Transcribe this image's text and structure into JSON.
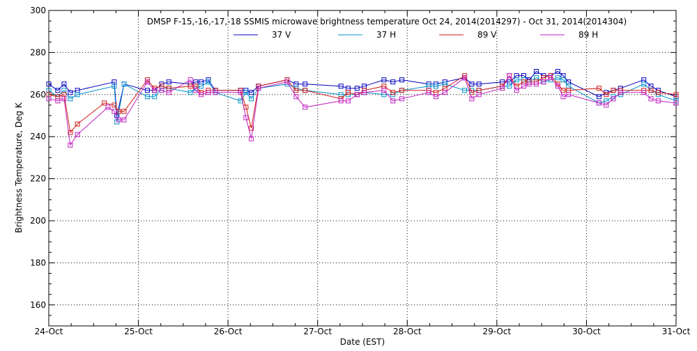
{
  "chart_data": {
    "type": "line",
    "title": "DMSP F-15,-16,-17,-18 SSMIS microwave brightness temperature Oct 24, 2014(2014297) - Oct 31, 2014(2014304)",
    "xlabel": "Date (EST)",
    "ylabel": "Brightness Temperature, Deg K",
    "xlim": [
      0,
      7
    ],
    "ylim": [
      150,
      300
    ],
    "yticks": [
      160,
      180,
      200,
      220,
      240,
      260,
      280,
      300
    ],
    "xtick_labels": [
      "24-Oct",
      "25-Oct",
      "26-Oct",
      "27-Oct",
      "28-Oct",
      "29-Oct",
      "30-Oct",
      "31-Oct"
    ],
    "grid": true,
    "legend_position": "top-center",
    "series": [
      {
        "name": "37 V",
        "color": "#0000c0",
        "x": [
          0.0,
          0.1,
          0.17,
          0.24,
          0.32,
          0.73,
          0.76,
          0.84,
          1.1,
          1.18,
          1.26,
          1.34,
          1.58,
          1.64,
          1.7,
          1.78,
          1.86,
          2.14,
          2.2,
          2.26,
          2.34,
          2.66,
          2.76,
          2.86,
          3.26,
          3.34,
          3.44,
          3.52,
          3.74,
          3.84,
          3.94,
          4.24,
          4.32,
          4.42,
          4.64,
          4.72,
          4.8,
          5.06,
          5.14,
          5.22,
          5.3,
          5.36,
          5.44,
          5.52,
          5.6,
          5.68,
          5.74,
          5.8,
          6.14,
          6.22,
          6.3,
          6.38,
          6.64,
          6.72,
          6.8,
          7.0
        ],
        "y": [
          265,
          262,
          265,
          261,
          262,
          266,
          250,
          265,
          262,
          262,
          265,
          266,
          265,
          266,
          266,
          267,
          262,
          262,
          262,
          261,
          264,
          267,
          265,
          265,
          264,
          263,
          263,
          264,
          267,
          266,
          267,
          265,
          265,
          266,
          268,
          265,
          265,
          266,
          266,
          269,
          269,
          267,
          271,
          269,
          269,
          271,
          269,
          266,
          259,
          261,
          262,
          263,
          267,
          264,
          262,
          259
        ]
      },
      {
        "name": "37 H",
        "color": "#0090c8",
        "x": [
          0.0,
          0.1,
          0.17,
          0.24,
          0.32,
          0.73,
          0.76,
          0.84,
          1.1,
          1.18,
          1.26,
          1.34,
          1.58,
          1.64,
          1.7,
          1.78,
          1.86,
          2.14,
          2.2,
          2.26,
          2.34,
          2.66,
          2.76,
          2.86,
          3.26,
          3.34,
          3.44,
          3.52,
          3.74,
          3.84,
          3.94,
          4.24,
          4.32,
          4.42,
          4.64,
          4.72,
          4.8,
          5.06,
          5.14,
          5.22,
          5.3,
          5.36,
          5.44,
          5.52,
          5.6,
          5.68,
          5.74,
          5.8,
          6.14,
          6.22,
          6.3,
          6.38,
          6.64,
          6.72,
          6.8,
          7.0
        ],
        "y": [
          262,
          259,
          262,
          258,
          260,
          264,
          247,
          265,
          259,
          259,
          263,
          263,
          261,
          263,
          264,
          266,
          261,
          257,
          261,
          258,
          263,
          265,
          263,
          262,
          260,
          260,
          260,
          261,
          260,
          260,
          262,
          264,
          264,
          265,
          262,
          262,
          262,
          264,
          264,
          267,
          267,
          266,
          268,
          266,
          267,
          268,
          267,
          264,
          256,
          257,
          259,
          260,
          265,
          262,
          260,
          257
        ]
      },
      {
        "name": "89 V",
        "color": "#d01818",
        "x": [
          0.0,
          0.1,
          0.17,
          0.24,
          0.32,
          0.62,
          0.73,
          0.78,
          0.84,
          1.1,
          1.18,
          1.26,
          1.34,
          1.58,
          1.64,
          1.7,
          1.78,
          1.86,
          2.14,
          2.2,
          2.26,
          2.34,
          2.66,
          2.76,
          2.86,
          3.26,
          3.34,
          3.44,
          3.52,
          3.74,
          3.84,
          3.94,
          4.24,
          4.32,
          4.42,
          4.64,
          4.72,
          4.8,
          5.06,
          5.14,
          5.22,
          5.3,
          5.36,
          5.44,
          5.52,
          5.6,
          5.68,
          5.74,
          5.8,
          6.14,
          6.22,
          6.3,
          6.38,
          6.64,
          6.72,
          6.8,
          7.0
        ],
        "y": [
          260,
          259,
          260,
          242,
          246,
          256,
          255,
          252,
          252,
          267,
          263,
          264,
          263,
          264,
          264,
          261,
          262,
          262,
          262,
          254,
          244,
          264,
          267,
          262,
          262,
          258,
          261,
          260,
          262,
          264,
          261,
          262,
          262,
          261,
          263,
          269,
          261,
          262,
          264,
          269,
          264,
          266,
          266,
          266,
          268,
          269,
          265,
          262,
          262,
          263,
          260,
          262,
          262,
          262,
          262,
          261,
          260
        ]
      },
      {
        "name": "89 H",
        "color": "#c020c0",
        "x": [
          0.0,
          0.1,
          0.17,
          0.24,
          0.32,
          0.66,
          0.73,
          0.78,
          0.84,
          1.1,
          1.18,
          1.26,
          1.34,
          1.58,
          1.64,
          1.7,
          1.78,
          1.86,
          2.14,
          2.2,
          2.26,
          2.34,
          2.66,
          2.76,
          2.86,
          3.26,
          3.34,
          3.44,
          3.52,
          3.74,
          3.84,
          3.94,
          4.24,
          4.32,
          4.42,
          4.64,
          4.72,
          4.8,
          5.06,
          5.14,
          5.22,
          5.3,
          5.36,
          5.44,
          5.52,
          5.6,
          5.68,
          5.74,
          5.8,
          6.14,
          6.22,
          6.3,
          6.38,
          6.64,
          6.72,
          6.8,
          7.0
        ],
        "y": [
          258,
          257,
          258,
          236,
          241,
          254,
          252,
          248,
          248,
          266,
          262,
          262,
          261,
          267,
          262,
          260,
          261,
          261,
          261,
          249,
          239,
          263,
          266,
          259,
          254,
          257,
          257,
          260,
          261,
          262,
          257,
          258,
          261,
          259,
          261,
          268,
          258,
          260,
          263,
          269,
          262,
          264,
          265,
          265,
          266,
          268,
          264,
          259,
          260,
          256,
          255,
          258,
          261,
          261,
          258,
          257,
          256
        ]
      }
    ]
  }
}
